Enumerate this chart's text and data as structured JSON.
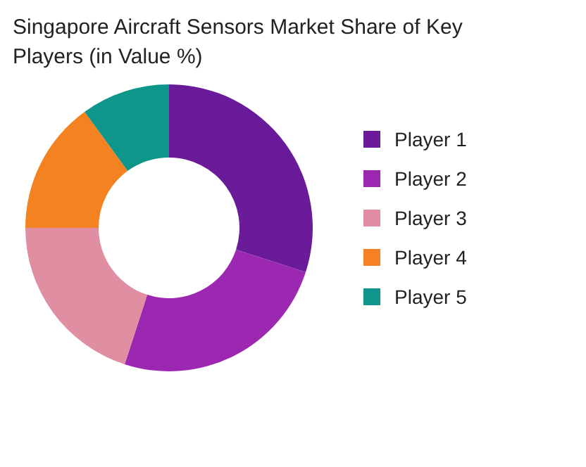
{
  "chart_data": {
    "type": "donut",
    "title": "Singapore Aircraft Sensors Market Share of Key Players (in Value %)",
    "categories": [
      "Player 1",
      "Player 2",
      "Player 3",
      "Player 4",
      "Player 5"
    ],
    "values": [
      30,
      25,
      20,
      15,
      10
    ],
    "colors": [
      "#6a1b9a",
      "#9c27b0",
      "#e08fa2",
      "#f58220",
      "#0e968a"
    ],
    "legend": "right"
  }
}
